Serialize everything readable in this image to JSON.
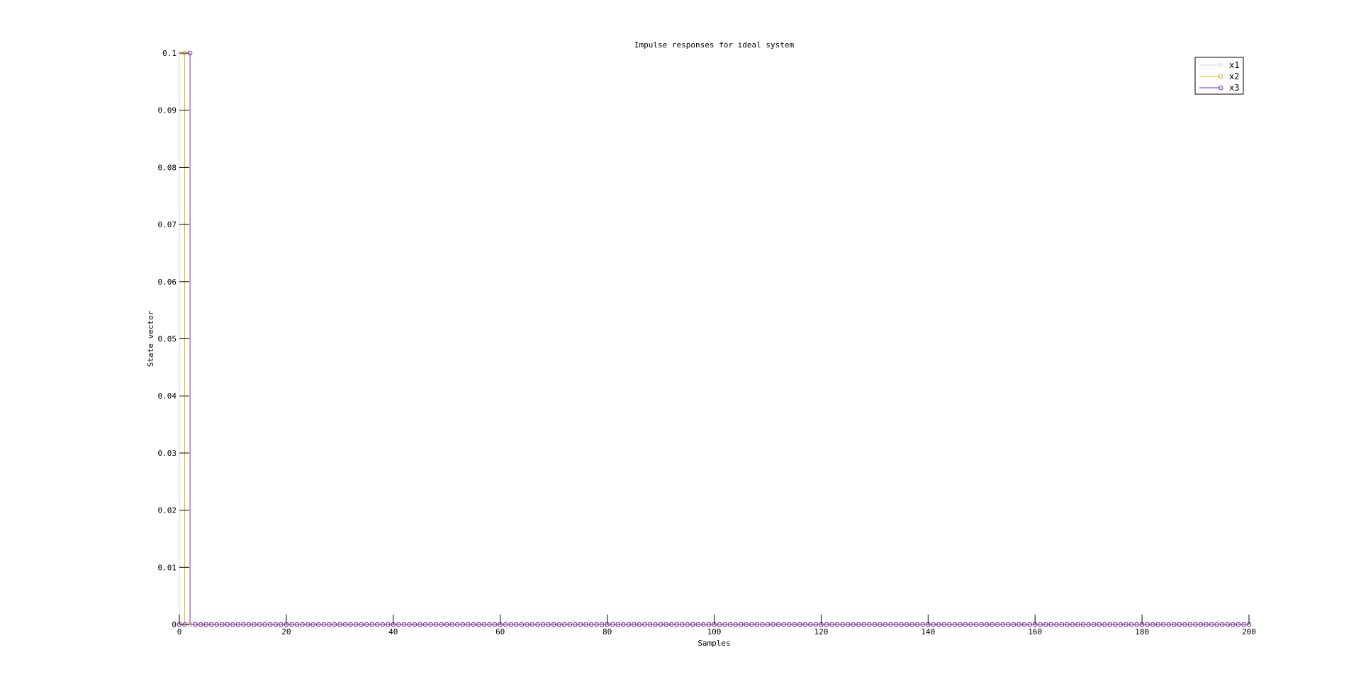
{
  "chart_data": {
    "type": "stem",
    "title": "Impulse responses for ideal system",
    "xlabel": "Samples",
    "ylabel": "State vector",
    "xlim": [
      0,
      200
    ],
    "ylim": [
      0,
      0.1
    ],
    "x_ticks": [
      0,
      20,
      40,
      60,
      80,
      100,
      120,
      140,
      160,
      180,
      200
    ],
    "y_ticks": [
      0,
      0.01,
      0.02,
      0.03,
      0.04,
      0.05,
      0.06,
      0.07,
      0.08,
      0.09,
      0.1
    ],
    "y_tick_labels": [
      "0",
      "0.01",
      "0.02",
      "0.03",
      "0.04",
      "0.05",
      "0.06",
      "0.07",
      "0.08",
      "0.09",
      "0.1"
    ],
    "grid": false,
    "legend_position": "top-right",
    "marker": "circle",
    "series": [
      {
        "name": "x1",
        "color": "#d9d9d9",
        "nonzero": [
          {
            "x": 0,
            "y": 0.1
          }
        ],
        "x_range": [
          0,
          200
        ],
        "default_y": 0
      },
      {
        "name": "x2",
        "color": "#e8b020",
        "nonzero": [
          {
            "x": 1,
            "y": 0.1
          }
        ],
        "x_range": [
          0,
          200
        ],
        "default_y": 0
      },
      {
        "name": "x3",
        "color": "#7b2fbe",
        "nonzero": [
          {
            "x": 2,
            "y": 0.1
          }
        ],
        "x_range": [
          0,
          200
        ],
        "default_y": 0
      }
    ]
  }
}
